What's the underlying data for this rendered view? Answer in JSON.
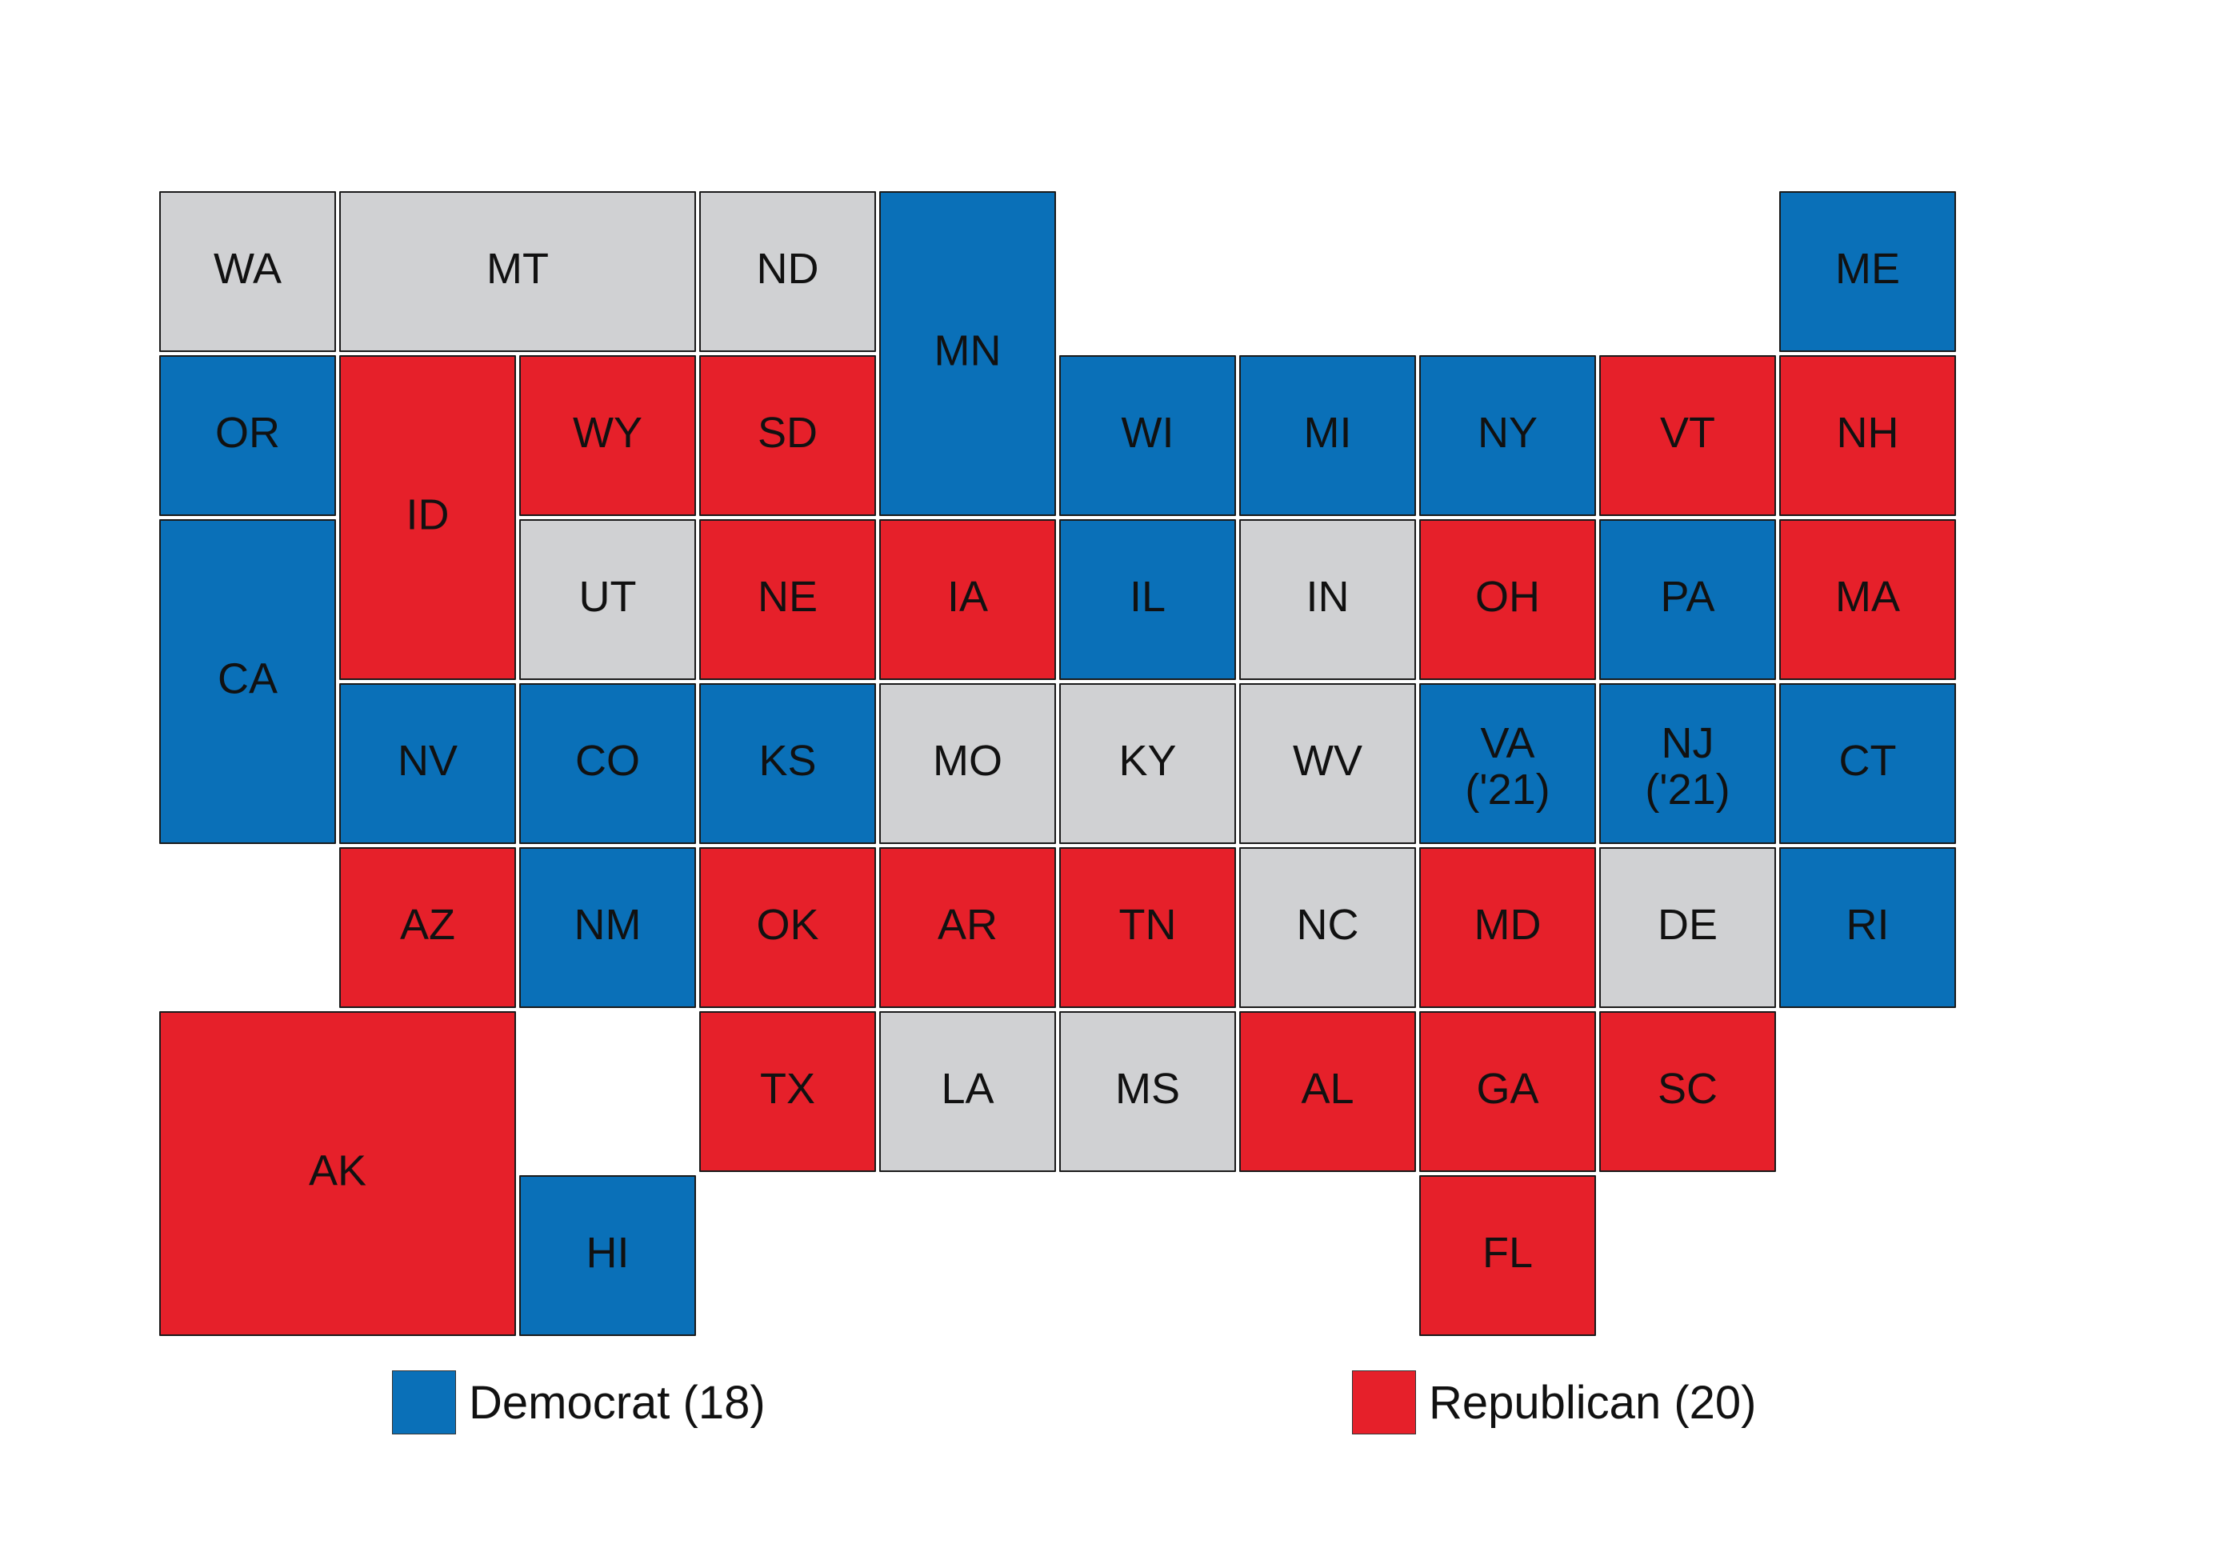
{
  "colors": {
    "democrat": "#0a70b8",
    "republican": "#e6202a",
    "neither": "#d0d1d3",
    "border": "#1a1a1a"
  },
  "states": [
    {
      "abbr": "WA",
      "label": "WA",
      "party": "neither"
    },
    {
      "abbr": "OR",
      "label": "OR",
      "party": "democrat"
    },
    {
      "abbr": "CA",
      "label": "CA",
      "party": "democrat"
    },
    {
      "abbr": "NV",
      "label": "NV",
      "party": "democrat"
    },
    {
      "abbr": "ID",
      "label": "ID",
      "party": "republican"
    },
    {
      "abbr": "MT",
      "label": "MT",
      "party": "neither"
    },
    {
      "abbr": "WY",
      "label": "WY",
      "party": "republican"
    },
    {
      "abbr": "UT",
      "label": "UT",
      "party": "neither"
    },
    {
      "abbr": "AZ",
      "label": "AZ",
      "party": "republican"
    },
    {
      "abbr": "CO",
      "label": "CO",
      "party": "democrat"
    },
    {
      "abbr": "NM",
      "label": "NM",
      "party": "democrat"
    },
    {
      "abbr": "ND",
      "label": "ND",
      "party": "neither"
    },
    {
      "abbr": "SD",
      "label": "SD",
      "party": "republican"
    },
    {
      "abbr": "NE",
      "label": "NE",
      "party": "republican"
    },
    {
      "abbr": "KS",
      "label": "KS",
      "party": "democrat"
    },
    {
      "abbr": "OK",
      "label": "OK",
      "party": "republican"
    },
    {
      "abbr": "TX",
      "label": "TX",
      "party": "republican"
    },
    {
      "abbr": "MN",
      "label": "MN",
      "party": "democrat"
    },
    {
      "abbr": "IA",
      "label": "IA",
      "party": "republican"
    },
    {
      "abbr": "MO",
      "label": "MO",
      "party": "neither"
    },
    {
      "abbr": "AR",
      "label": "AR",
      "party": "republican"
    },
    {
      "abbr": "LA",
      "label": "LA",
      "party": "neither"
    },
    {
      "abbr": "WI",
      "label": "WI",
      "party": "democrat"
    },
    {
      "abbr": "IL",
      "label": "IL",
      "party": "democrat"
    },
    {
      "abbr": "MI",
      "label": "MI",
      "party": "democrat"
    },
    {
      "abbr": "IN",
      "label": "IN",
      "party": "neither"
    },
    {
      "abbr": "OH",
      "label": "OH",
      "party": "republican"
    },
    {
      "abbr": "KY",
      "label": "KY",
      "party": "neither"
    },
    {
      "abbr": "TN",
      "label": "TN",
      "party": "republican"
    },
    {
      "abbr": "MS",
      "label": "MS",
      "party": "neither"
    },
    {
      "abbr": "AL",
      "label": "AL",
      "party": "republican"
    },
    {
      "abbr": "GA",
      "label": "GA",
      "party": "republican"
    },
    {
      "abbr": "FL",
      "label": "FL",
      "party": "republican"
    },
    {
      "abbr": "SC",
      "label": "SC",
      "party": "republican"
    },
    {
      "abbr": "NC",
      "label": "NC",
      "party": "neither"
    },
    {
      "abbr": "VA",
      "label": "VA",
      "party": "democrat",
      "sub": "('21)"
    },
    {
      "abbr": "WV",
      "label": "WV",
      "party": "neither"
    },
    {
      "abbr": "PA",
      "label": "PA",
      "party": "democrat"
    },
    {
      "abbr": "NY",
      "label": "NY",
      "party": "democrat"
    },
    {
      "abbr": "VT",
      "label": "VT",
      "party": "republican"
    },
    {
      "abbr": "NH",
      "label": "NH",
      "party": "republican"
    },
    {
      "abbr": "ME",
      "label": "ME",
      "party": "democrat"
    },
    {
      "abbr": "MA",
      "label": "MA",
      "party": "republican"
    },
    {
      "abbr": "RI",
      "label": "RI",
      "party": "democrat"
    },
    {
      "abbr": "CT",
      "label": "CT",
      "party": "democrat"
    },
    {
      "abbr": "NJ",
      "label": "NJ ('21)",
      "party": "democrat"
    },
    {
      "abbr": "MD",
      "label": "MD",
      "party": "republican"
    },
    {
      "abbr": "DE",
      "label": "DE",
      "party": "neither"
    },
    {
      "abbr": "AK",
      "label": "AK",
      "party": "republican"
    },
    {
      "abbr": "HI",
      "label": "HI",
      "party": "democrat"
    }
  ],
  "legend": {
    "democrat_label": "Democrat (18)",
    "republican_label": "Republican (20)",
    "democrat_count": 18,
    "republican_count": 20
  }
}
